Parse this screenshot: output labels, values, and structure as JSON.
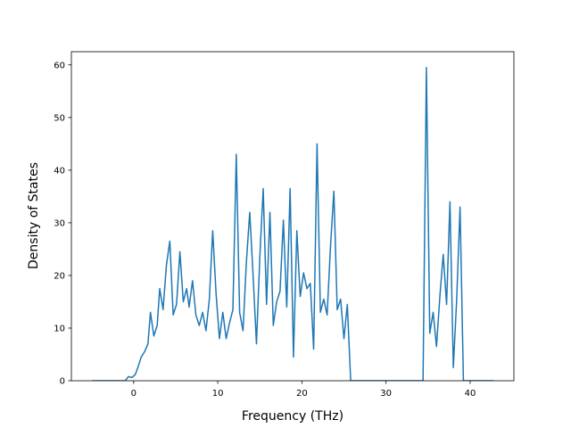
{
  "chart_data": {
    "type": "line",
    "title": "",
    "xlabel": "Frequency (THz)",
    "ylabel": "Density of States",
    "xlim": [
      -7.4,
      45.2
    ],
    "ylim": [
      0,
      62.5
    ],
    "xticks": [
      0,
      10,
      20,
      30,
      40
    ],
    "yticks": [
      0,
      10,
      20,
      30,
      40,
      50,
      60
    ],
    "grid": false,
    "legend": "none",
    "colors": {
      "line": "#1f77b4"
    },
    "series": [
      {
        "x": [
          -4.9,
          -1.0,
          -0.6,
          -0.2,
          0.2,
          0.5,
          0.9,
          1.3,
          1.7,
          2.0,
          2.4,
          2.8,
          3.1,
          3.5,
          3.9,
          4.3,
          4.7,
          5.1,
          5.5,
          5.9,
          6.3,
          6.6,
          7.0,
          7.4,
          7.8,
          8.2,
          8.6,
          9.0,
          9.4,
          9.8,
          10.2,
          10.6,
          11.0,
          11.4,
          11.8,
          12.2,
          12.6,
          13.0,
          13.4,
          13.8,
          14.2,
          14.6,
          15.0,
          15.4,
          15.8,
          16.2,
          16.6,
          17.0,
          17.4,
          17.8,
          18.2,
          18.6,
          19.0,
          19.4,
          19.8,
          20.2,
          20.6,
          21.0,
          21.4,
          21.8,
          22.2,
          22.6,
          23.0,
          23.4,
          23.8,
          24.2,
          24.6,
          25.0,
          25.4,
          25.8,
          26.2,
          34.4,
          34.8,
          35.2,
          35.6,
          36.0,
          36.4,
          36.8,
          37.2,
          37.6,
          38.0,
          38.4,
          38.8,
          39.2,
          42.8
        ],
        "y": [
          0,
          0,
          0.8,
          0.6,
          1.2,
          2.5,
          4.5,
          5.5,
          7.0,
          13.0,
          8.5,
          10.5,
          17.5,
          13.5,
          22.0,
          26.5,
          12.5,
          14.5,
          24.5,
          15.0,
          17.5,
          14.0,
          19.0,
          12.5,
          10.5,
          13.0,
          9.5,
          15.5,
          28.5,
          16.5,
          8.0,
          13.0,
          8.0,
          11.0,
          13.5,
          43.0,
          13.0,
          9.5,
          22.5,
          32.0,
          20.0,
          7.0,
          23.5,
          36.5,
          14.5,
          32.0,
          10.5,
          15.0,
          17.0,
          30.5,
          14.0,
          36.5,
          4.5,
          28.5,
          16.0,
          20.5,
          17.5,
          18.5,
          6.0,
          45.0,
          13.0,
          15.5,
          12.5,
          25.5,
          36.0,
          13.5,
          15.5,
          8.0,
          14.5,
          0,
          0,
          0,
          59.5,
          9.0,
          13.0,
          6.5,
          16.0,
          24.0,
          14.5,
          34.0,
          2.5,
          15.5,
          33.0,
          0,
          0
        ]
      }
    ]
  }
}
